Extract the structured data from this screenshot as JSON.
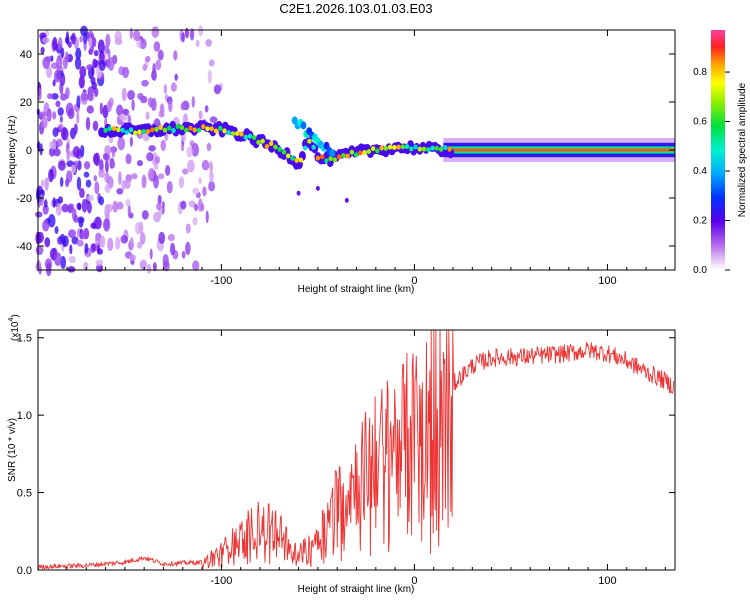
{
  "title": "C2E1.2026.103.01.03.E03",
  "top_chart": {
    "xlabel": "Height of straight line (km)",
    "ylabel": "Frequency (Hz)",
    "xlim": [
      -195,
      135
    ],
    "ylim": [
      -50,
      50
    ],
    "xticks": [
      -100,
      0,
      100
    ],
    "xtick_labels": [
      "-100",
      "0",
      "100"
    ],
    "yticks": [
      -40,
      -20,
      0,
      20,
      40
    ],
    "ytick_labels": [
      "-40",
      "-20",
      "0",
      "20",
      "40"
    ],
    "colorbar": {
      "label": "Normalized spectral amplitude",
      "range": [
        0.0,
        0.97
      ],
      "ticks": [
        "0.0",
        "0.2",
        "0.4",
        "0.6",
        "0.8"
      ]
    }
  },
  "bottom_chart": {
    "xlabel": "Height of straight line (km)",
    "ylabel": "SNR (10 * v/v)",
    "multiplier": "(x10",
    "multiplier_exp": "4",
    "multiplier_close": ")",
    "xlim": [
      -195,
      135
    ],
    "ylim": [
      0.0,
      1.55
    ],
    "xticks": [
      -100,
      0,
      100
    ],
    "xtick_labels": [
      "-100",
      "0",
      "100"
    ],
    "yticks": [
      0.0,
      0.5,
      1.0,
      1.5
    ],
    "ytick_labels": [
      "0.0",
      "0.5",
      "1.0",
      "1.5"
    ],
    "line_color": "#ee3333"
  },
  "chart_data": [
    {
      "type": "heatmap",
      "title": "C2E1.2026.103.01.03.E03",
      "xlabel": "Height of straight line (km)",
      "ylabel": "Frequency (Hz)",
      "xlim": [
        -195,
        135
      ],
      "ylim": [
        -50,
        50
      ],
      "ridge": {
        "description": "dominant frequency vs height",
        "x": [
          -160,
          -140,
          -120,
          -105,
          -95,
          -85,
          -75,
          -65,
          -60,
          -55,
          -50,
          -45,
          -40,
          -30,
          -20,
          -10,
          0,
          10,
          20,
          40,
          60,
          80,
          100,
          120,
          135
        ],
        "y": [
          8,
          8,
          9,
          9,
          8,
          5,
          2,
          -2,
          -6,
          5,
          -3,
          -4,
          -3,
          -1,
          0,
          1,
          1,
          0,
          0,
          0,
          0,
          0,
          0,
          0,
          0
        ]
      }
    },
    {
      "type": "line",
      "title": "",
      "xlabel": "Height of straight line (km)",
      "ylabel": "SNR (10 * v/v) (x10^4)",
      "xlim": [
        -195,
        135
      ],
      "ylim": [
        0.0,
        1.55
      ],
      "envelope": {
        "x": [
          -195,
          -170,
          -150,
          -140,
          -130,
          -110,
          -100,
          -90,
          -80,
          -70,
          -60,
          -50,
          -40,
          -30,
          -20,
          -10,
          0,
          10,
          20,
          30,
          40,
          60,
          80,
          90,
          100,
          110,
          120,
          130,
          135
        ],
        "y": [
          0.02,
          0.03,
          0.05,
          0.08,
          0.04,
          0.05,
          0.12,
          0.22,
          0.3,
          0.25,
          0.1,
          0.22,
          0.45,
          0.6,
          0.75,
          0.85,
          0.95,
          1.05,
          1.2,
          1.32,
          1.37,
          1.38,
          1.4,
          1.42,
          1.4,
          1.35,
          1.28,
          1.22,
          1.18
        ]
      }
    }
  ]
}
